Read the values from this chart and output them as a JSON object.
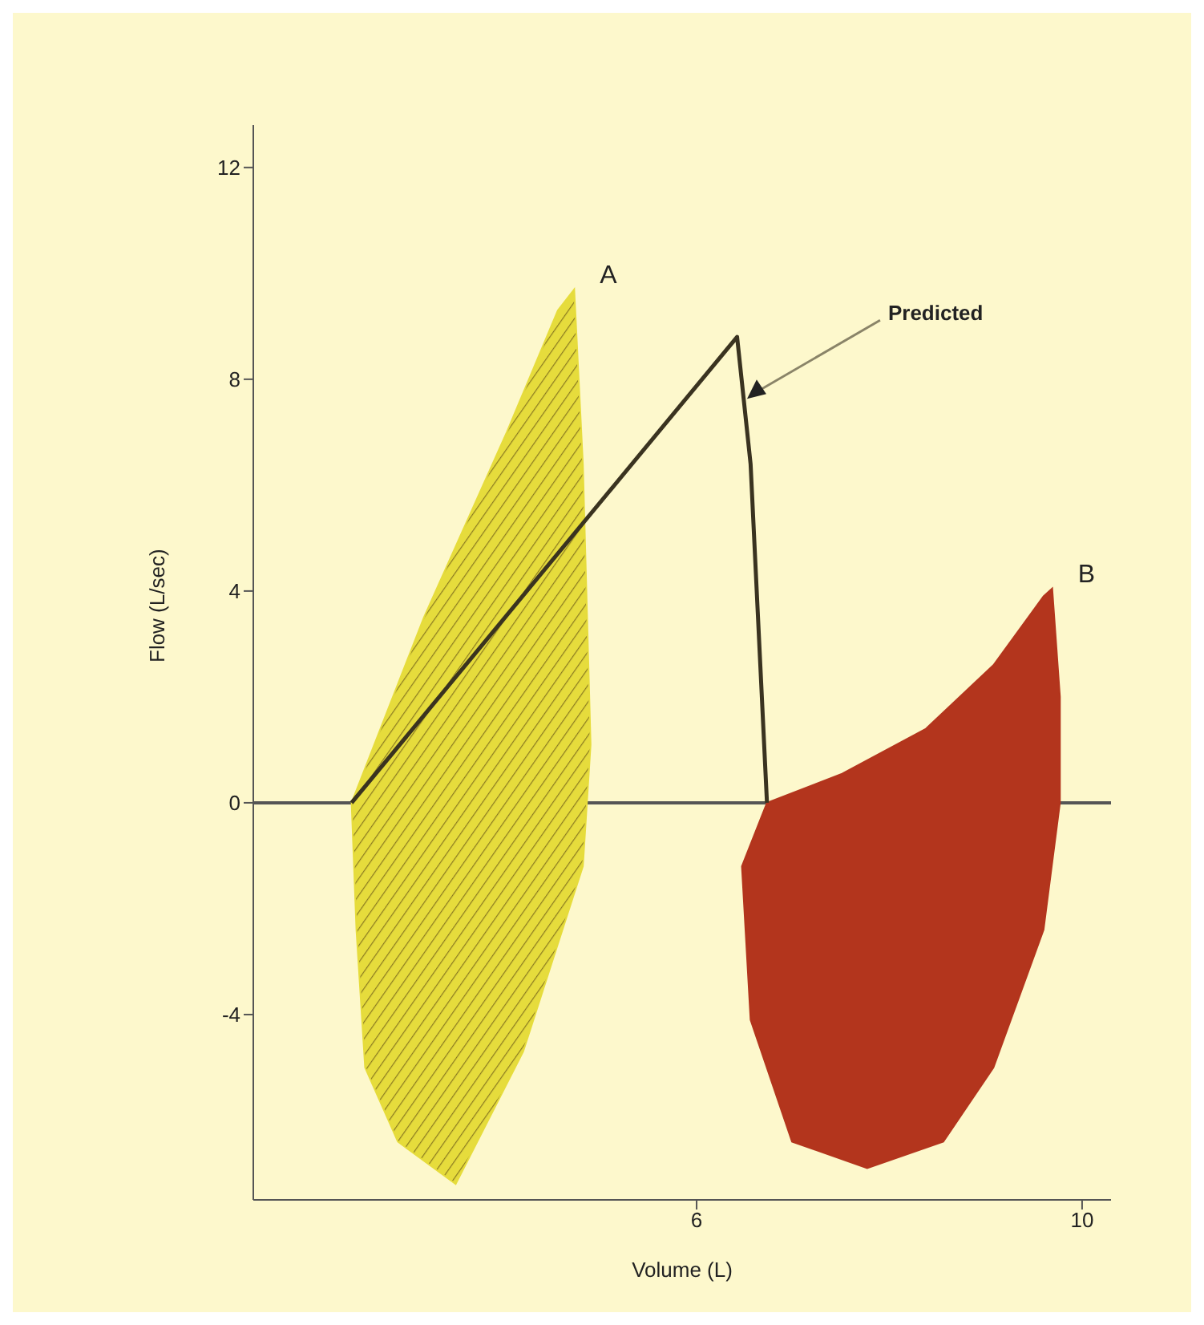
{
  "chart_data": {
    "type": "area",
    "xlabel": "Volume (L)",
    "ylabel": "Flow (L/sec)",
    "xlim": [
      1.4,
      10.3
    ],
    "ylim": [
      -7.5,
      12.8
    ],
    "xticks": [
      6,
      10
    ],
    "yticks": [
      12,
      8,
      4,
      0,
      -4
    ],
    "grid": false,
    "legend": false,
    "ref_lines": [
      {
        "axis": "y",
        "value": 0
      }
    ],
    "series": [
      {
        "name": "A",
        "color": "#e6dc3c",
        "x": [
          2.42,
          3.17,
          4.03,
          4.56,
          4.73,
          4.82,
          4.9,
          4.82,
          4.2,
          3.5,
          2.9,
          2.56,
          2.47,
          2.42
        ],
        "values": [
          0,
          3.5,
          7,
          9.3,
          9.7,
          6.4,
          1.1,
          -1.2,
          -4.7,
          -7.2,
          -6.4,
          -5,
          -2.4,
          0
        ]
      },
      {
        "name": "B",
        "color": "#b3351d",
        "x": [
          6.73,
          7.51,
          8.38,
          9.08,
          9.6,
          9.69,
          9.77,
          9.77,
          9.6,
          9.08,
          8.56,
          7.77,
          6.99,
          6.56,
          6.47,
          6.73
        ],
        "values": [
          0,
          0.55,
          1.4,
          2.6,
          3.9,
          4.05,
          2,
          0,
          -2.4,
          -5,
          -6.4,
          -6.9,
          -6.4,
          -4.1,
          -1.2,
          0
        ]
      },
      {
        "type": "line",
        "name": "Predicted",
        "color": "#3a3320",
        "x": [
          2.42,
          6.42,
          6.56,
          6.73
        ],
        "values": [
          0,
          8.8,
          6.4,
          0
        ]
      }
    ]
  }
}
